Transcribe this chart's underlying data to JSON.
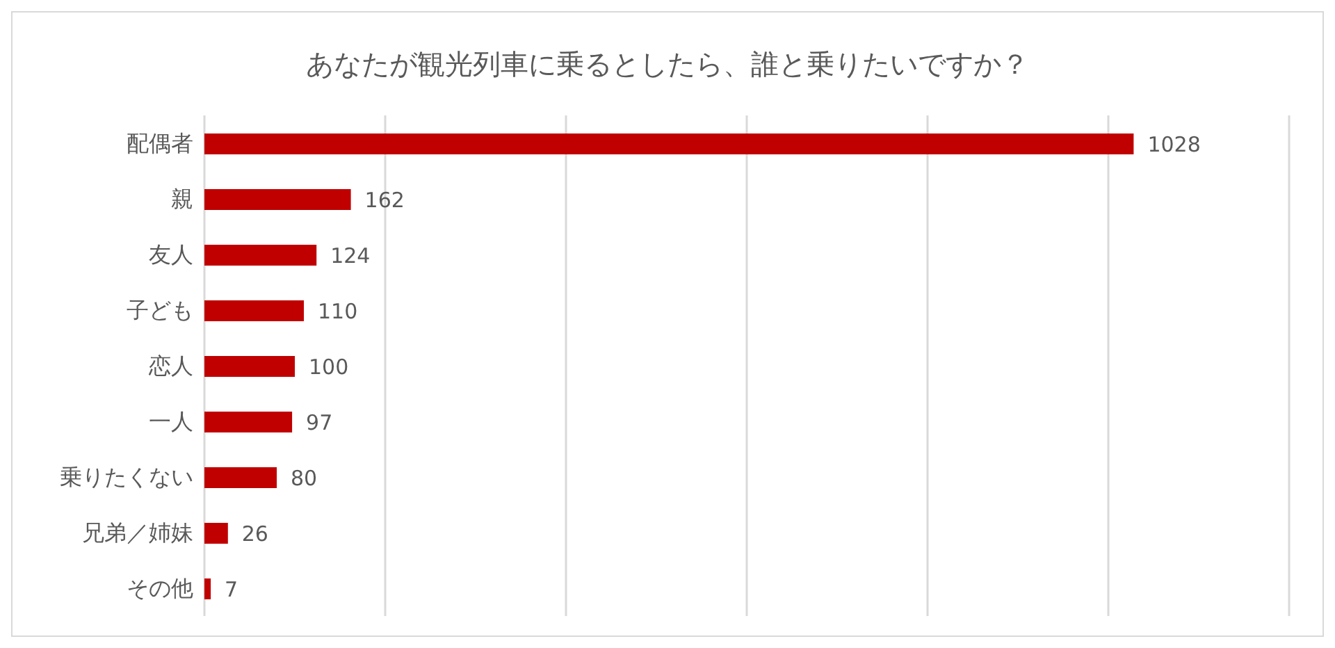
{
  "chart_data": {
    "type": "bar",
    "orientation": "horizontal",
    "title": "あなたが観光列車に乗るとしたら、誰と乗りたいですか？",
    "categories": [
      "配偶者",
      "親",
      "友人",
      "子ども",
      "恋人",
      "一人",
      "乗りたくない",
      "兄弟／姉妹",
      "その他"
    ],
    "values": [
      1028,
      162,
      124,
      110,
      100,
      97,
      80,
      26,
      7
    ],
    "color": "#c00000",
    "data_labels": true,
    "grid": "x",
    "tick_labels": "y",
    "xlim": [
      0,
      1200
    ],
    "xticks": [
      {
        "value": 0,
        "label": null
      },
      {
        "value": 200,
        "label": null
      },
      {
        "value": 400,
        "label": null
      },
      {
        "value": 600,
        "label": null
      },
      {
        "value": 800,
        "label": null
      },
      {
        "value": 1000,
        "label": null
      },
      {
        "value": 1200,
        "label": null
      }
    ]
  }
}
